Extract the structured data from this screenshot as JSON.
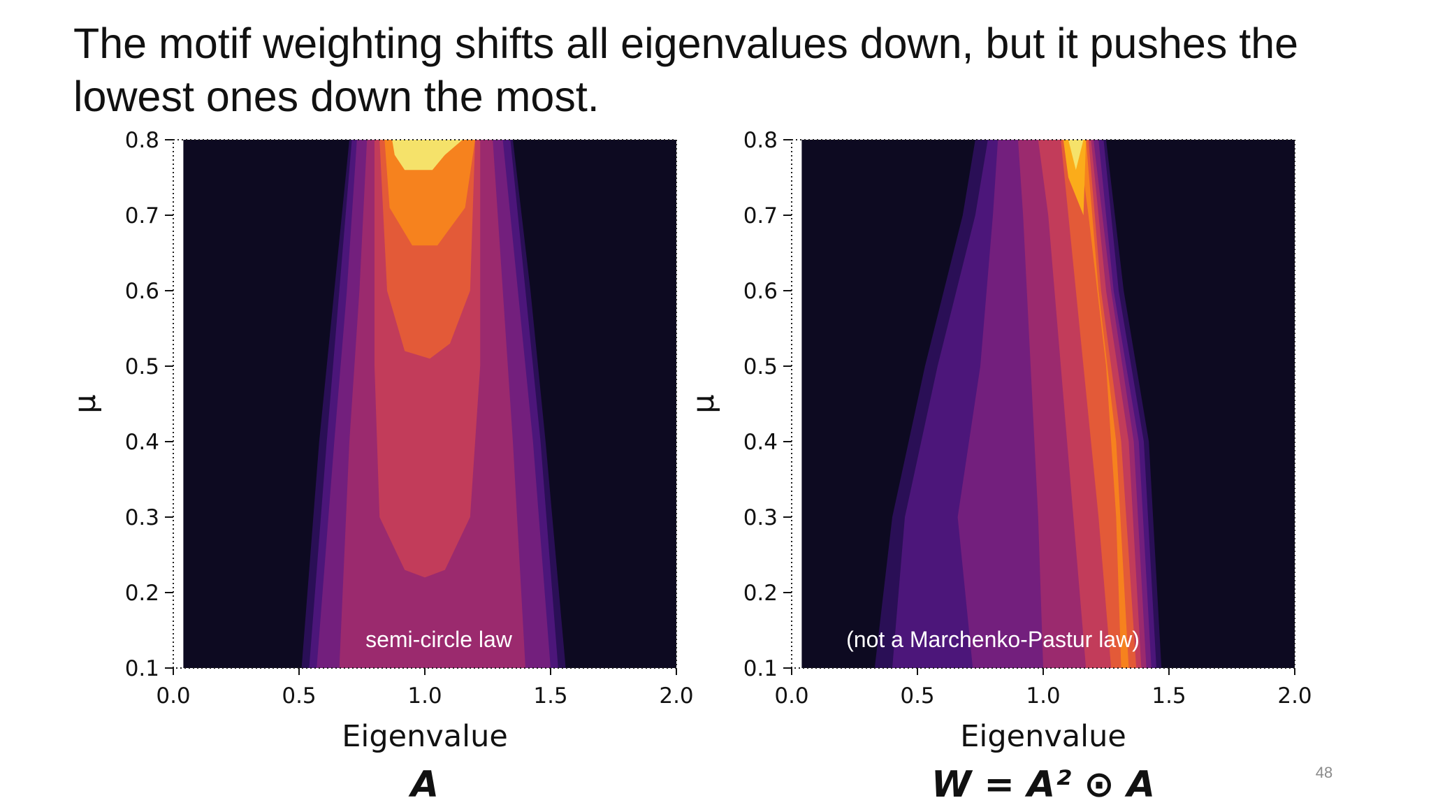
{
  "slide": {
    "title": "The motif weighting shifts all eigenvalues down, but it pushes the lowest ones down the most.",
    "page_number": "48"
  },
  "colors": {
    "background": "#0d0a21",
    "levels": [
      "#0d0a21",
      "#2a0f56",
      "#4c167a",
      "#731f7d",
      "#9b2a6e",
      "#c23c5a",
      "#e35a38",
      "#f6821e",
      "#fbac1a",
      "#f5e26a"
    ]
  },
  "chart_data": [
    {
      "type": "contour",
      "xlabel": "Eigenvalue",
      "ylabel": "μ",
      "xlim": [
        0.0,
        2.0
      ],
      "ylim": [
        0.1,
        0.8
      ],
      "xticks": [
        "0.0",
        "0.5",
        "1.0",
        "1.5",
        "2.0"
      ],
      "yticks": [
        "0.1",
        "0.2",
        "0.3",
        "0.4",
        "0.5",
        "0.6",
        "0.7",
        "0.8"
      ],
      "annotation": "semi-circle law",
      "subtitle": "A",
      "contours": [
        {
          "level": 1,
          "points": [
            [
              0.51,
              0.1
            ],
            [
              0.58,
              0.4
            ],
            [
              0.64,
              0.6
            ],
            [
              0.7,
              0.8
            ],
            [
              1.35,
              0.8
            ],
            [
              1.42,
              0.6
            ],
            [
              1.48,
              0.4
            ],
            [
              1.56,
              0.1
            ]
          ]
        },
        {
          "level": 2,
          "points": [
            [
              0.54,
              0.1
            ],
            [
              0.61,
              0.4
            ],
            [
              0.66,
              0.6
            ],
            [
              0.71,
              0.8
            ],
            [
              1.34,
              0.8
            ],
            [
              1.4,
              0.6
            ],
            [
              1.46,
              0.4
            ],
            [
              1.53,
              0.1
            ]
          ]
        },
        {
          "level": 3,
          "points": [
            [
              0.57,
              0.1
            ],
            [
              0.64,
              0.4
            ],
            [
              0.69,
              0.6
            ],
            [
              0.73,
              0.8
            ],
            [
              1.31,
              0.8
            ],
            [
              1.37,
              0.6
            ],
            [
              1.43,
              0.4
            ],
            [
              1.5,
              0.1
            ]
          ]
        },
        {
          "level": 4,
          "points": [
            [
              0.66,
              0.1
            ],
            [
              0.7,
              0.4
            ],
            [
              0.74,
              0.6
            ],
            [
              0.77,
              0.8
            ],
            [
              1.27,
              0.8
            ],
            [
              1.31,
              0.6
            ],
            [
              1.35,
              0.4
            ],
            [
              1.4,
              0.1
            ]
          ]
        },
        {
          "level": 5,
          "points": [
            [
              0.82,
              0.3
            ],
            [
              0.8,
              0.5
            ],
            [
              0.8,
              0.8
            ],
            [
              1.22,
              0.8
            ],
            [
              1.22,
              0.5
            ],
            [
              1.18,
              0.3
            ],
            [
              1.08,
              0.23
            ],
            [
              1.0,
              0.22
            ],
            [
              0.92,
              0.23
            ]
          ]
        },
        {
          "level": 6,
          "points": [
            [
              0.92,
              0.52
            ],
            [
              0.85,
              0.6
            ],
            [
              0.82,
              0.8
            ],
            [
              1.2,
              0.8
            ],
            [
              1.18,
              0.6
            ],
            [
              1.1,
              0.53
            ],
            [
              1.02,
              0.51
            ]
          ]
        },
        {
          "level": 7,
          "points": [
            [
              0.95,
              0.66
            ],
            [
              0.86,
              0.71
            ],
            [
              0.84,
              0.8
            ],
            [
              1.2,
              0.8
            ],
            [
              1.16,
              0.71
            ],
            [
              1.05,
              0.66
            ]
          ]
        },
        {
          "level": 9,
          "points": [
            [
              0.92,
              0.76
            ],
            [
              0.88,
              0.78
            ],
            [
              0.87,
              0.8
            ],
            [
              1.15,
              0.8
            ],
            [
              1.08,
              0.78
            ],
            [
              1.03,
              0.76
            ]
          ]
        }
      ]
    },
    {
      "type": "contour",
      "xlabel": "Eigenvalue",
      "ylabel": "μ",
      "xlim": [
        0.0,
        2.0
      ],
      "ylim": [
        0.1,
        0.8
      ],
      "xticks": [
        "0.0",
        "0.5",
        "1.0",
        "1.5",
        "2.0"
      ],
      "yticks": [
        "0.1",
        "0.2",
        "0.3",
        "0.4",
        "0.5",
        "0.6",
        "0.7",
        "0.8"
      ],
      "annotation": "(not a Marchenko-Pastur law)",
      "subtitle": "W = A² ⊙ A",
      "contours": [
        {
          "level": 1,
          "points": [
            [
              0.33,
              0.1
            ],
            [
              0.4,
              0.3
            ],
            [
              0.53,
              0.5
            ],
            [
              0.68,
              0.7
            ],
            [
              0.73,
              0.8
            ],
            [
              1.25,
              0.8
            ],
            [
              1.32,
              0.6
            ],
            [
              1.42,
              0.4
            ],
            [
              1.47,
              0.1
            ]
          ]
        },
        {
          "level": 2,
          "points": [
            [
              0.4,
              0.1
            ],
            [
              0.45,
              0.3
            ],
            [
              0.58,
              0.5
            ],
            [
              0.73,
              0.7
            ],
            [
              0.78,
              0.8
            ],
            [
              1.24,
              0.8
            ],
            [
              1.3,
              0.6
            ],
            [
              1.4,
              0.4
            ],
            [
              1.45,
              0.1
            ]
          ]
        },
        {
          "level": 3,
          "points": [
            [
              0.72,
              0.1
            ],
            [
              0.66,
              0.3
            ],
            [
              0.75,
              0.5
            ],
            [
              0.8,
              0.7
            ],
            [
              0.82,
              0.8
            ],
            [
              1.22,
              0.8
            ],
            [
              1.28,
              0.6
            ],
            [
              1.38,
              0.4
            ],
            [
              1.43,
              0.1
            ]
          ]
        },
        {
          "level": 4,
          "points": [
            [
              1.0,
              0.1
            ],
            [
              0.98,
              0.3
            ],
            [
              0.95,
              0.5
            ],
            [
              0.92,
              0.7
            ],
            [
              0.9,
              0.8
            ],
            [
              1.2,
              0.8
            ],
            [
              1.27,
              0.6
            ],
            [
              1.36,
              0.4
            ],
            [
              1.41,
              0.1
            ]
          ]
        },
        {
          "level": 5,
          "points": [
            [
              1.17,
              0.1
            ],
            [
              1.12,
              0.3
            ],
            [
              1.07,
              0.5
            ],
            [
              1.02,
              0.7
            ],
            [
              0.98,
              0.8
            ],
            [
              1.19,
              0.8
            ],
            [
              1.25,
              0.6
            ],
            [
              1.34,
              0.4
            ],
            [
              1.39,
              0.1
            ]
          ]
        },
        {
          "level": 6,
          "points": [
            [
              1.27,
              0.1
            ],
            [
              1.22,
              0.3
            ],
            [
              1.16,
              0.5
            ],
            [
              1.1,
              0.7
            ],
            [
              1.07,
              0.8
            ],
            [
              1.18,
              0.8
            ],
            [
              1.23,
              0.6
            ],
            [
              1.31,
              0.4
            ],
            [
              1.37,
              0.1
            ]
          ]
        },
        {
          "level": 7,
          "points": [
            [
              1.31,
              0.1
            ],
            [
              1.29,
              0.3
            ],
            [
              1.25,
              0.5
            ],
            [
              1.18,
              0.7
            ],
            [
              1.14,
              0.8
            ],
            [
              1.17,
              0.8
            ],
            [
              1.22,
              0.6
            ],
            [
              1.29,
              0.4
            ],
            [
              1.34,
              0.1
            ]
          ]
        },
        {
          "level": 8,
          "points": [
            [
              1.08,
              0.8
            ],
            [
              1.17,
              0.8
            ],
            [
              1.16,
              0.7
            ],
            [
              1.1,
              0.75
            ]
          ]
        },
        {
          "level": 9,
          "points": [
            [
              1.1,
              0.8
            ],
            [
              1.16,
              0.8
            ],
            [
              1.13,
              0.76
            ]
          ]
        }
      ]
    }
  ]
}
